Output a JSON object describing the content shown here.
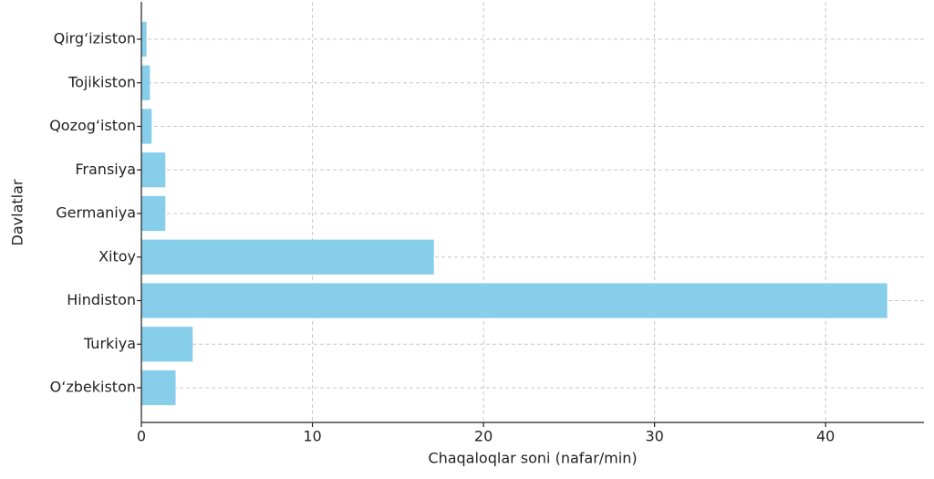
{
  "chart_data": {
    "type": "barh",
    "categories": [
      "O‘zbekiston",
      "Turkiya",
      "Hindiston",
      "Xitoy",
      "Germaniya",
      "Fransiya",
      "Qozog‘iston",
      "Tojikiston",
      "Qirg‘iziston"
    ],
    "values": [
      2.0,
      3.0,
      43.6,
      17.1,
      1.4,
      1.4,
      0.6,
      0.5,
      0.3
    ],
    "color": "#87ceeb",
    "xlim": [
      0,
      45.75
    ],
    "xticks": [
      0,
      10,
      20,
      30,
      40
    ],
    "xlabel": "Chaqaloqlar soni (nafar/min)",
    "ylabel": "Davlatlar",
    "grid": true
  }
}
